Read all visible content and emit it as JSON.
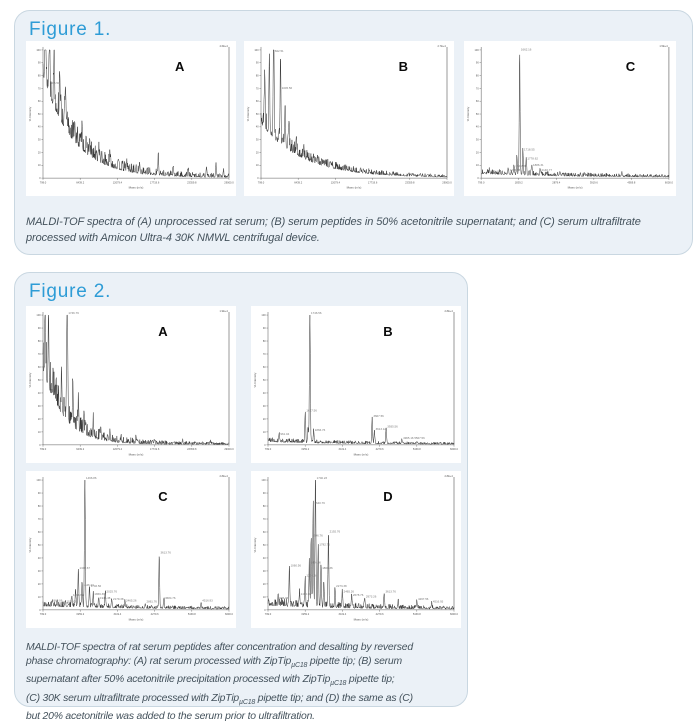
{
  "colors": {
    "accent_blue": "#2e9cd6",
    "box_background": "#ebf1f7",
    "box_border": "#c9d7e1",
    "caption_text": "#44525c",
    "trace": "#222222",
    "axis": "#555555",
    "peak_label_text": "#777777"
  },
  "figure1": {
    "title": "Figure 1.",
    "caption_lines": [
      [
        {
          "t": "MALDI-TOF spectra of (A) unprocessed rat serum; (B) serum peptides in 50% acetonitrile supernatant; and (C) serum ultrafiltrate"
        }
      ],
      [
        {
          "t": "processed with Amicon Ultra-4 30K NMWL centrifugal device."
        }
      ]
    ]
  },
  "figure2": {
    "title": "Figure 2.",
    "caption_lines": [
      [
        {
          "t": "MALDI-TOF spectra of rat serum peptides after concentration and desalting by reversed"
        }
      ],
      [
        {
          "t": "phase chromatography: (A) rat serum processed with ZipTip"
        },
        {
          "t": "µC18",
          "sub": true
        },
        {
          "t": " pipette tip; (B) serum"
        }
      ],
      [
        {
          "t": "supernatant after 50% acetonitrile precipitation processed with ZipTip"
        },
        {
          "t": "µC18",
          "sub": true
        },
        {
          "t": " pipette tip;"
        }
      ],
      [
        {
          "t": "(C) 30K serum ultrafiltrate processed with ZipTip"
        },
        {
          "t": "µC18",
          "sub": true
        },
        {
          "t": " pipette tip; and (D) the same as (C)"
        }
      ],
      [
        {
          "t": "but 20% acetonitrile was added to the serum prior to ultrafiltration."
        }
      ]
    ]
  },
  "chart_data": [
    {
      "id": "fig1-A",
      "figure": "Figure 1",
      "panel_label": "A",
      "type": "line",
      "title": "Unprocessed rat serum",
      "xlabel": "Mass (m/z)",
      "ylabel": "% Intensity",
      "ylim": [
        0,
        100
      ],
      "y_tick_step": 10,
      "x_ticks": [
        "799.0",
        "6439.2",
        "12079.4",
        "17719.6",
        "23359.8",
        "29000.0"
      ],
      "max_intensity_label": "4.6E+4",
      "letter_x": 0.71,
      "decay": {
        "amp": 80,
        "tau": 0.16
      },
      "noise": {
        "base": 2.4,
        "scale": 26
      },
      "peaks": [
        {
          "x": 0.012,
          "h": 90
        },
        {
          "x": 0.035,
          "h": 72,
          "label": "905.54"
        },
        {
          "x": 0.06,
          "h": 50
        },
        {
          "x": 0.09,
          "h": 38
        },
        {
          "x": 0.12,
          "h": 30
        },
        {
          "x": 0.17,
          "h": 16
        },
        {
          "x": 0.21,
          "h": 12
        },
        {
          "x": 0.25,
          "h": 9
        },
        {
          "x": 0.3,
          "h": 10
        },
        {
          "x": 0.36,
          "h": 8
        },
        {
          "x": 0.45,
          "h": 7
        },
        {
          "x": 0.52,
          "h": 6
        },
        {
          "x": 0.62,
          "h": 16
        },
        {
          "x": 0.7,
          "h": 5
        },
        {
          "x": 0.78,
          "h": 5
        },
        {
          "x": 0.88,
          "h": 7
        },
        {
          "x": 0.93,
          "h": 9
        },
        {
          "x": 0.97,
          "h": 5
        }
      ]
    },
    {
      "id": "fig1-B",
      "figure": "Figure 1",
      "panel_label": "B",
      "type": "line",
      "title": "Serum peptides in 50% acetonitrile supernatant",
      "xlabel": "Mass (m/z)",
      "ylabel": "% Intensity",
      "ylim": [
        0,
        100
      ],
      "y_tick_step": 10,
      "x_ticks": [
        "799.0",
        "6439.2",
        "12079.4",
        "17719.6",
        "23359.8",
        "29000.0"
      ],
      "max_intensity_label": "2.7E+4",
      "letter_x": 0.74,
      "decay": {
        "amp": 42,
        "tau": 0.22
      },
      "noise": {
        "base": 1.0,
        "scale": 14
      },
      "peaks": [
        {
          "x": 0.02,
          "h": 46
        },
        {
          "x": 0.045,
          "h": 52
        },
        {
          "x": 0.068,
          "h": 97,
          "label": "842.51"
        },
        {
          "x": 0.105,
          "h": 68,
          "label": "1045.56"
        },
        {
          "x": 0.13,
          "h": 28
        },
        {
          "x": 0.15,
          "h": 22
        },
        {
          "x": 0.19,
          "h": 14
        },
        {
          "x": 0.23,
          "h": 10
        }
      ]
    },
    {
      "id": "fig1-C",
      "figure": "Figure 1",
      "panel_label": "C",
      "type": "line",
      "title": "Serum ultrafiltrate, Amicon Ultra-4 30K NMWL",
      "xlabel": "Mass (m/z)",
      "ylabel": "% Intensity",
      "ylim": [
        0,
        100
      ],
      "y_tick_step": 10,
      "x_ticks": [
        "799.0",
        "1839.2",
        "2879.4",
        "3919.6",
        "4959.8",
        "6000.0"
      ],
      "max_intensity_label": "1.5E+4",
      "letter_x": 0.77,
      "decay": {
        "amp": 3,
        "tau": 0.5
      },
      "noise": {
        "base": 0.9,
        "scale": 4
      },
      "peaks": [
        {
          "x": 0.045,
          "h": 3,
          "label": "805.17"
        },
        {
          "x": 0.1,
          "h": 2.5
        },
        {
          "x": 0.145,
          "h": 4,
          "label": "1235.58"
        },
        {
          "x": 0.175,
          "h": 7,
          "label": "1566.56"
        },
        {
          "x": 0.19,
          "h": 12
        },
        {
          "x": 0.205,
          "h": 98,
          "label": "1662.16"
        },
        {
          "x": 0.222,
          "h": 20,
          "label": "1718.55"
        },
        {
          "x": 0.24,
          "h": 13,
          "label": "1778.62"
        },
        {
          "x": 0.27,
          "h": 8,
          "label": "1886.31"
        },
        {
          "x": 0.315,
          "h": 4,
          "label": "2146.77"
        },
        {
          "x": 0.42,
          "h": 2
        },
        {
          "x": 0.55,
          "h": 1.5
        },
        {
          "x": 0.75,
          "h": 2
        }
      ]
    },
    {
      "id": "fig2-A",
      "figure": "Figure 2",
      "panel_label": "A",
      "type": "line",
      "title": "Rat serum, ZipTip µC18",
      "xlabel": "Mass (m/z)",
      "ylabel": "% Intensity",
      "ylim": [
        0,
        100
      ],
      "y_tick_step": 10,
      "x_ticks": [
        "799.0",
        "6439.2",
        "12079.4",
        "17719.6",
        "23359.8",
        "29000.0"
      ],
      "max_intensity_label": "1.9E+4",
      "letter_x": 0.62,
      "decay": {
        "amp": 58,
        "tau": 0.11
      },
      "noise": {
        "base": 1.8,
        "scale": 30
      },
      "peaks": [
        {
          "x": 0.012,
          "h": 62
        },
        {
          "x": 0.03,
          "h": 48
        },
        {
          "x": 0.13,
          "h": 100,
          "label": "1746.76",
          "w": 0.004
        },
        {
          "x": 0.1,
          "h": 30
        },
        {
          "x": 0.16,
          "h": 26
        },
        {
          "x": 0.19,
          "h": 18
        },
        {
          "x": 0.22,
          "h": 14
        },
        {
          "x": 0.27,
          "h": 12
        },
        {
          "x": 0.31,
          "h": 9
        },
        {
          "x": 0.36,
          "h": 8
        },
        {
          "x": 0.42,
          "h": 6
        },
        {
          "x": 0.5,
          "h": 4
        },
        {
          "x": 0.6,
          "h": 3
        },
        {
          "x": 0.75,
          "h": 2.5
        },
        {
          "x": 0.9,
          "h": 2
        }
      ]
    },
    {
      "id": "fig2-B",
      "figure": "Figure 2",
      "panel_label": "B",
      "type": "line",
      "title": "Serum 50% acetonitrile supernatant, ZipTip µC18",
      "xlabel": "Mass (m/z)",
      "ylabel": "% Intensity",
      "ylim": [
        0,
        100
      ],
      "y_tick_step": 10,
      "x_ticks": [
        "799.0",
        "1959.2",
        "3119.4",
        "4279.6",
        "5439.8",
        "6600.0"
      ],
      "max_intensity_label": "2.8E+4",
      "letter_x": 0.62,
      "decay": {
        "amp": 2,
        "tau": 0.4
      },
      "noise": {
        "base": 0.8,
        "scale": 3
      },
      "peaks": [
        {
          "x": 0.06,
          "h": 6,
          "label": "961.04"
        },
        {
          "x": 0.2,
          "h": 24,
          "label": "1617.56"
        },
        {
          "x": 0.215,
          "h": 12
        },
        {
          "x": 0.225,
          "h": 100,
          "label": "1746.56",
          "w": 0.0035
        },
        {
          "x": 0.245,
          "h": 9,
          "label": "1866.76"
        },
        {
          "x": 0.56,
          "h": 20,
          "label": "3667.56"
        },
        {
          "x": 0.572,
          "h": 10,
          "label": "3613.12"
        },
        {
          "x": 0.635,
          "h": 12,
          "label": "3935.56"
        },
        {
          "x": 0.72,
          "h": 3,
          "label": "4965.16  5567.56"
        },
        {
          "x": 0.8,
          "h": 2
        }
      ]
    },
    {
      "id": "fig2-C",
      "figure": "Figure 2",
      "panel_label": "C",
      "type": "line",
      "title": "30K serum ultrafiltrate, ZipTip µC18",
      "xlabel": "Mass (m/z)",
      "ylabel": "% Intensity",
      "ylim": [
        0,
        100
      ],
      "y_tick_step": 10,
      "x_ticks": [
        "799.0",
        "1959.2",
        "3119.4",
        "4279.6",
        "5439.8",
        "6600.0"
      ],
      "max_intensity_label": "2.8E+4",
      "letter_x": 0.62,
      "decay": {
        "amp": 2.5,
        "tau": 0.45
      },
      "noise": {
        "base": 0.9,
        "scale": 4
      },
      "peaks": [
        {
          "x": 0.05,
          "h": 5,
          "label": "865.06"
        },
        {
          "x": 0.075,
          "h": 3,
          "label": "1124.56"
        },
        {
          "x": 0.12,
          "h": 4,
          "label": "1196.08"
        },
        {
          "x": 0.155,
          "h": 9,
          "label": "1296.68"
        },
        {
          "x": 0.175,
          "h": 14
        },
        {
          "x": 0.19,
          "h": 30,
          "label": "1346.67"
        },
        {
          "x": 0.21,
          "h": 17,
          "label": "1446.23"
        },
        {
          "x": 0.225,
          "h": 100,
          "label": "1466.86",
          "w": 0.0035
        },
        {
          "x": 0.25,
          "h": 16,
          "label": "1746.56"
        },
        {
          "x": 0.27,
          "h": 10,
          "label": "1866.36"
        },
        {
          "x": 0.3,
          "h": 7,
          "label": "1946.38"
        },
        {
          "x": 0.335,
          "h": 12,
          "label": "2025.76"
        },
        {
          "x": 0.37,
          "h": 6,
          "label": "2179.38"
        },
        {
          "x": 0.44,
          "h": 5,
          "label": "2465.26"
        },
        {
          "x": 0.55,
          "h": 4,
          "label": "2861.76"
        },
        {
          "x": 0.625,
          "h": 42,
          "label": "3613.76"
        },
        {
          "x": 0.65,
          "h": 7,
          "label": "3684.76"
        },
        {
          "x": 0.85,
          "h": 5,
          "label": "4516.93"
        }
      ]
    },
    {
      "id": "fig2-D",
      "figure": "Figure 2",
      "panel_label": "D",
      "type": "line",
      "title": "Same as C with 20% acetonitrile added before ultrafiltration",
      "xlabel": "Mass (m/z)",
      "ylabel": "% Intensity",
      "ylim": [
        0,
        100
      ],
      "y_tick_step": 10,
      "x_ticks": [
        "799.0",
        "1959.2",
        "3119.4",
        "4279.6",
        "5439.8",
        "6600.0"
      ],
      "max_intensity_label": "2.8E+4",
      "letter_x": 0.62,
      "decay": {
        "amp": 3,
        "tau": 0.4
      },
      "noise": {
        "base": 1.1,
        "scale": 6
      },
      "peaks": [
        {
          "x": 0.055,
          "h": 7,
          "label": "946.06"
        },
        {
          "x": 0.115,
          "h": 32,
          "label": "1060.56"
        },
        {
          "x": 0.17,
          "h": 10,
          "label": "1196.08"
        },
        {
          "x": 0.2,
          "h": 24,
          "label": "1296.68"
        },
        {
          "x": 0.222,
          "h": 34,
          "label": "1466.86"
        },
        {
          "x": 0.232,
          "h": 55,
          "label": "1546.76"
        },
        {
          "x": 0.243,
          "h": 80,
          "label": "1640.76"
        },
        {
          "x": 0.255,
          "h": 100,
          "label": "1746.23",
          "w": 0.0035
        },
        {
          "x": 0.27,
          "h": 48,
          "label": "1782.76"
        },
        {
          "x": 0.285,
          "h": 30,
          "label": "1866.36"
        },
        {
          "x": 0.3,
          "h": 20
        },
        {
          "x": 0.325,
          "h": 58,
          "label": "2192.76"
        },
        {
          "x": 0.36,
          "h": 16,
          "label": "2273.38"
        },
        {
          "x": 0.4,
          "h": 12,
          "label": "2465.26"
        },
        {
          "x": 0.45,
          "h": 9,
          "label": "2678.76"
        },
        {
          "x": 0.52,
          "h": 8,
          "label": "2973.26"
        },
        {
          "x": 0.625,
          "h": 12,
          "label": "3613.76"
        },
        {
          "x": 0.7,
          "h": 5
        },
        {
          "x": 0.8,
          "h": 6,
          "label": "4267.56"
        },
        {
          "x": 0.88,
          "h": 4,
          "label": "4516.93"
        }
      ]
    }
  ]
}
